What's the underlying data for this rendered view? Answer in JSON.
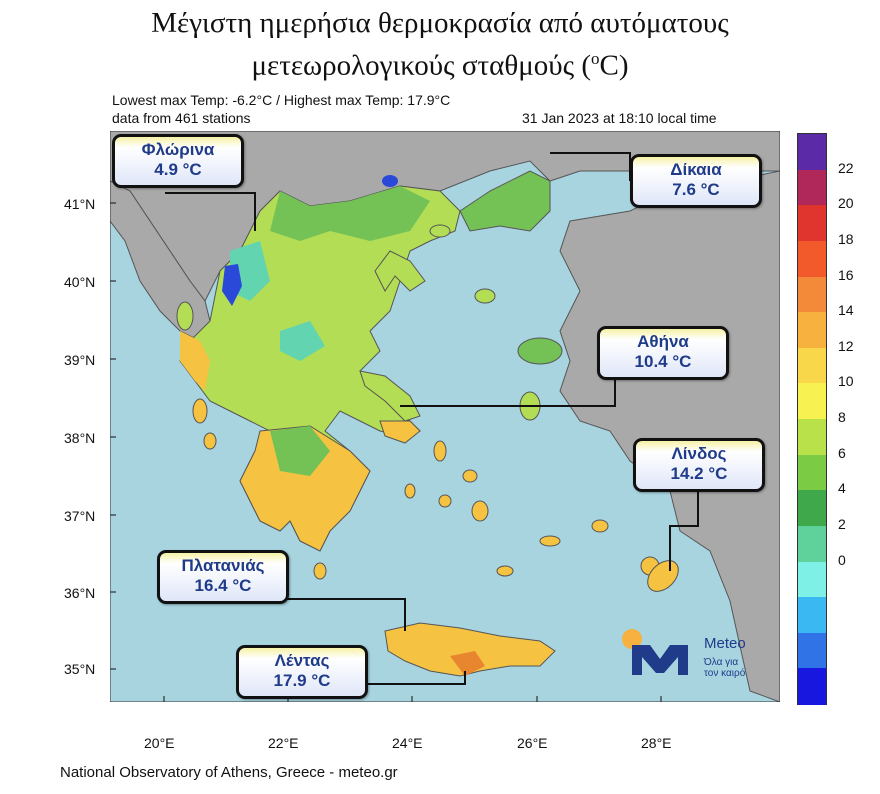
{
  "title": {
    "line1": "Μέγιστη ημερήσια θερμοκρασία από αυτόματους",
    "line2": "μετεωρολογικούς σταθμούς (",
    "line2_deg": "o",
    "line2_end": "C)"
  },
  "header": {
    "extremes": "Lowest max Temp: -6.2°C / Highest max Temp: 17.9°C",
    "stations": "data from 461 stations",
    "timestamp": "31 Jan 2023 at 18:10 local time"
  },
  "axes": {
    "lat_labels": [
      "41°N",
      "40°N",
      "39°N",
      "38°N",
      "37°N",
      "36°N",
      "35°N"
    ],
    "lon_labels": [
      "20°E",
      "22°E",
      "24°E",
      "26°E",
      "28°E"
    ]
  },
  "stations": [
    {
      "name": "Φλώρινα",
      "value": "4.9 °C"
    },
    {
      "name": "Δίκαια",
      "value": "7.6 °C"
    },
    {
      "name": "Αθήνα",
      "value": "10.4 °C"
    },
    {
      "name": "Λίνδος",
      "value": "14.2 °C"
    },
    {
      "name": "Πλατανιάς",
      "value": "16.4 °C"
    },
    {
      "name": "Λέντας",
      "value": "17.9 °C"
    }
  ],
  "colorbar": {
    "ticks": [
      "22",
      "20",
      "18",
      "16",
      "14",
      "12",
      "10",
      "8",
      "6",
      "4",
      "2",
      "0"
    ],
    "colors": [
      "#5b2aa6",
      "#b0285a",
      "#e0342f",
      "#f25a2b",
      "#f28a3a",
      "#f6b13f",
      "#f9d74b",
      "#f7f252",
      "#b9e24a",
      "#7ccb44",
      "#3fa84a",
      "#5fd19a",
      "#7ff0e6",
      "#3ab8f2",
      "#2f73e6",
      "#1717e0"
    ]
  },
  "map_colors": {
    "sea": "#a8d4e0",
    "land_other": "#a9a9a9",
    "warm": "#f5c242",
    "mid": "#b3dd55",
    "cool": "#74c256",
    "cold": "#62d4b0",
    "coldest": "#2a49d8",
    "hot": "#e8852f"
  },
  "footer": "National Observatory of Athens, Greece - meteo.gr",
  "logo": {
    "word": "Meteo",
    "sub1": "Όλα για",
    "sub2": "τον καιρό"
  }
}
